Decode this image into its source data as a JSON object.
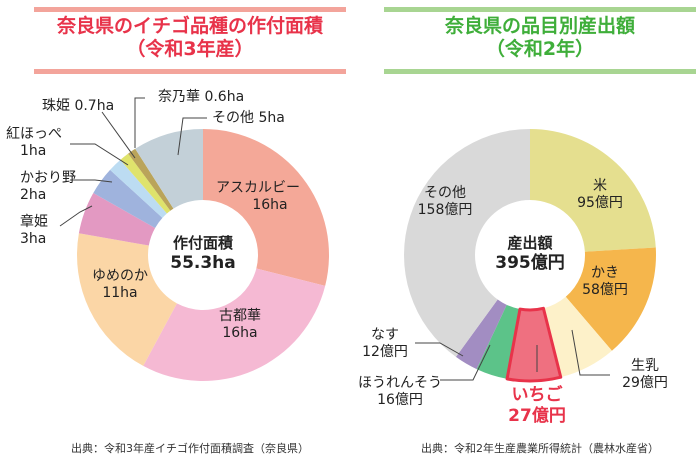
{
  "left": {
    "title_line1": "奈良県のイチゴ品種の作付面積",
    "title_line2": "（令和3年産）",
    "title_color": "#e8334a",
    "rule_color": "#f3a49b",
    "center_label": "作付面積",
    "center_value": "55.3ha",
    "source": "出典：令和3年産イチゴ作付面積調査（奈良県）",
    "slices": [
      {
        "name": "アスカルビー",
        "value": 16,
        "value_label": "16ha",
        "color": "#f4a898"
      },
      {
        "name": "古都華",
        "value": 16,
        "value_label": "16ha",
        "color": "#f5b9d3"
      },
      {
        "name": "ゆめのか",
        "value": 11,
        "value_label": "11ha",
        "color": "#fbd6a6"
      },
      {
        "name": "章姫",
        "value": 3,
        "value_label": "3ha",
        "color": "#e399c2"
      },
      {
        "name": "かおり野",
        "value": 2,
        "value_label": "2ha",
        "color": "#9fb3dd"
      },
      {
        "name": "紅ほっぺ",
        "value": 1,
        "value_label": "1ha",
        "color": "#bcdcf2"
      },
      {
        "name": "珠姫",
        "value": 0.7,
        "value_label": "0.7ha",
        "color": "#dfe36c"
      },
      {
        "name": "奈乃華",
        "value": 0.6,
        "value_label": "0.6ha",
        "color": "#baa45a"
      },
      {
        "name": "その他",
        "value": 5,
        "value_label": "5ha",
        "color": "#c3d0d8"
      }
    ]
  },
  "right": {
    "title_line1": "奈良県の品目別産出額",
    "title_line2": "（令和2年）",
    "title_color": "#3fae3a",
    "rule_color": "#a8d592",
    "center_label": "産出額",
    "center_value": "395億円",
    "source": "出典：令和2年生産農業所得統計（農林水産省）",
    "highlight_color": "#e8334a",
    "slices": [
      {
        "name": "米",
        "value": 95,
        "value_label": "95億円",
        "color": "#e5df8f"
      },
      {
        "name": "かき",
        "value": 58,
        "value_label": "58億円",
        "color": "#f5b64c"
      },
      {
        "name": "生乳",
        "value": 29,
        "value_label": "29億円",
        "color": "#fdf1c9"
      },
      {
        "name": "いちご",
        "value": 27,
        "value_label": "27億円",
        "color": "#ef7080",
        "highlight": true
      },
      {
        "name": "ほうれんそう",
        "value": 16,
        "value_label": "16億円",
        "color": "#5cc389"
      },
      {
        "name": "なす",
        "value": 12,
        "value_label": "12億円",
        "color": "#a28dc2"
      },
      {
        "name": "その他",
        "value": 158,
        "value_label": "158億円",
        "color": "#d9d9d9"
      }
    ]
  }
}
